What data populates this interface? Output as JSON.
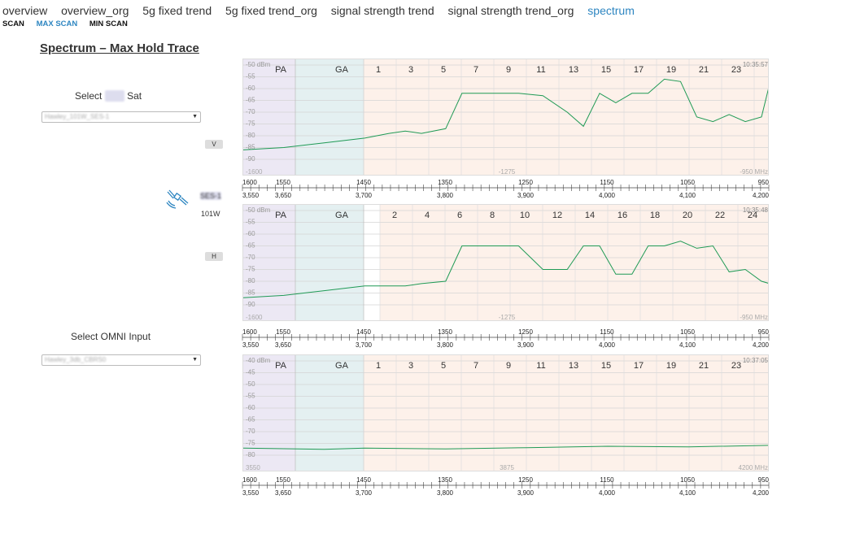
{
  "nav": {
    "tabs": [
      {
        "label": "overview",
        "active": false
      },
      {
        "label": "overview_org",
        "active": false
      },
      {
        "label": "5g fixed trend",
        "active": false
      },
      {
        "label": "5g fixed trend_org",
        "active": false
      },
      {
        "label": "signal strength trend",
        "active": false
      },
      {
        "label": "signal strength trend_org",
        "active": false
      },
      {
        "label": "spectrum",
        "active": true
      }
    ],
    "subtabs": [
      {
        "label": "SCAN",
        "active": false
      },
      {
        "label": "MAX SCAN",
        "active": true
      },
      {
        "label": "MIN SCAN",
        "active": false
      }
    ]
  },
  "page_title": "Spectrum – Max Hold Trace",
  "left": {
    "select_sat_label_a": "Select",
    "select_sat_label_b": "Sat",
    "sat_select_value": "Hawley_101W_SES-1",
    "pol_v": "V",
    "pol_h": "H",
    "sat_name_blurred": "SES-1",
    "sat_orbit": "101W",
    "omni_label": "Select OMNI Input",
    "omni_select_value": "Hawley_3db_CBRS0"
  },
  "colors": {
    "trace": "#1f9a55",
    "band_pa": "#ece8f4",
    "band_ga": "#e4f0f1",
    "band_ch": "#fdf1ea",
    "accent": "#2e86c1"
  },
  "panels": [
    {
      "timestamp": "10:35:57",
      "y_labels": [
        "-50 dBm",
        "-55",
        "-60",
        "-65",
        "-70",
        "-75",
        "-80",
        "-85",
        "-90"
      ],
      "bottom_left": "-1600",
      "bottom_mid": "-1275",
      "bottom_right": "-950 MHz",
      "channels": [
        "PA",
        "GA",
        "1",
        "3",
        "5",
        "7",
        "9",
        "11",
        "13",
        "15",
        "17",
        "19",
        "21",
        "23"
      ],
      "ch_offset": 0
    },
    {
      "timestamp": "10:35:48",
      "y_labels": [
        "-50 dBm",
        "-55",
        "-60",
        "-65",
        "-70",
        "-75",
        "-80",
        "-85",
        "-90"
      ],
      "bottom_left": "-1600",
      "bottom_mid": "-1275",
      "bottom_right": "-950 MHz",
      "channels": [
        "PA",
        "GA",
        "2",
        "4",
        "6",
        "8",
        "10",
        "12",
        "14",
        "16",
        "18",
        "20",
        "22",
        "24"
      ],
      "ch_offset": 1
    },
    {
      "timestamp": "10:37:05",
      "y_labels": [
        "-40 dBm",
        "-45",
        "-50",
        "-55",
        "-60",
        "-65",
        "-70",
        "-75",
        "-80"
      ],
      "bottom_left": "3550",
      "bottom_mid": "3875",
      "bottom_right": "4200 MHz",
      "channels": [
        "PA",
        "GA",
        "1",
        "3",
        "5",
        "7",
        "9",
        "11",
        "13",
        "15",
        "17",
        "19",
        "21",
        "23"
      ],
      "ch_offset": 0
    }
  ],
  "axis": {
    "top_labels": [
      "1600",
      "1550",
      "1450",
      "1350",
      "1250",
      "1150",
      "1050",
      "950"
    ],
    "bottom_labels": [
      "3,550",
      "3,650",
      "3,700",
      "3,800",
      "3,900",
      "4,000",
      "4,100",
      "4,200"
    ]
  },
  "chart_data": [
    {
      "type": "line",
      "title": "",
      "x": [
        1600,
        1550,
        1500,
        1450,
        1420,
        1400,
        1380,
        1350,
        1330,
        1300,
        1280,
        1260,
        1230,
        1200,
        1180,
        1160,
        1140,
        1120,
        1100,
        1080,
        1060,
        1040,
        1020,
        1000,
        980,
        960,
        950
      ],
      "series": [
        {
          "values": [
            -86,
            -85,
            -83,
            -81,
            -79,
            -78,
            -79,
            -77,
            -62,
            -62,
            -62,
            -62,
            -63,
            -70,
            -76,
            -62,
            -66,
            -62,
            -62,
            -56,
            -57,
            -72,
            -74,
            -71,
            -74,
            -72,
            -58
          ]
        }
      ],
      "xlabel": "",
      "ylabel": "",
      "ylim": [
        -90,
        -50
      ],
      "grid": true
    },
    {
      "type": "line",
      "title": "",
      "x": [
        1600,
        1550,
        1500,
        1450,
        1420,
        1400,
        1380,
        1350,
        1330,
        1300,
        1280,
        1260,
        1230,
        1200,
        1180,
        1160,
        1140,
        1120,
        1100,
        1080,
        1060,
        1040,
        1020,
        1000,
        980,
        960,
        950
      ],
      "series": [
        {
          "values": [
            -87,
            -86,
            -84,
            -82,
            -82,
            -82,
            -81,
            -80,
            -65,
            -65,
            -65,
            -65,
            -75,
            -75,
            -65,
            -65,
            -77,
            -77,
            -65,
            -65,
            -63,
            -66,
            -65,
            -76,
            -75,
            -80,
            -81
          ]
        }
      ],
      "xlabel": "",
      "ylabel": "",
      "ylim": [
        -90,
        -50
      ],
      "grid": true
    },
    {
      "type": "line",
      "title": "",
      "x": [
        3550,
        3650,
        3700,
        3800,
        3900,
        4000,
        4100,
        4200
      ],
      "series": [
        {
          "values": [
            -77,
            -77.5,
            -77,
            -77.3,
            -76.8,
            -76.2,
            -76.5,
            -75.8
          ]
        }
      ],
      "xlabel": "",
      "ylabel": "",
      "ylim": [
        -80,
        -40
      ],
      "grid": true
    }
  ]
}
